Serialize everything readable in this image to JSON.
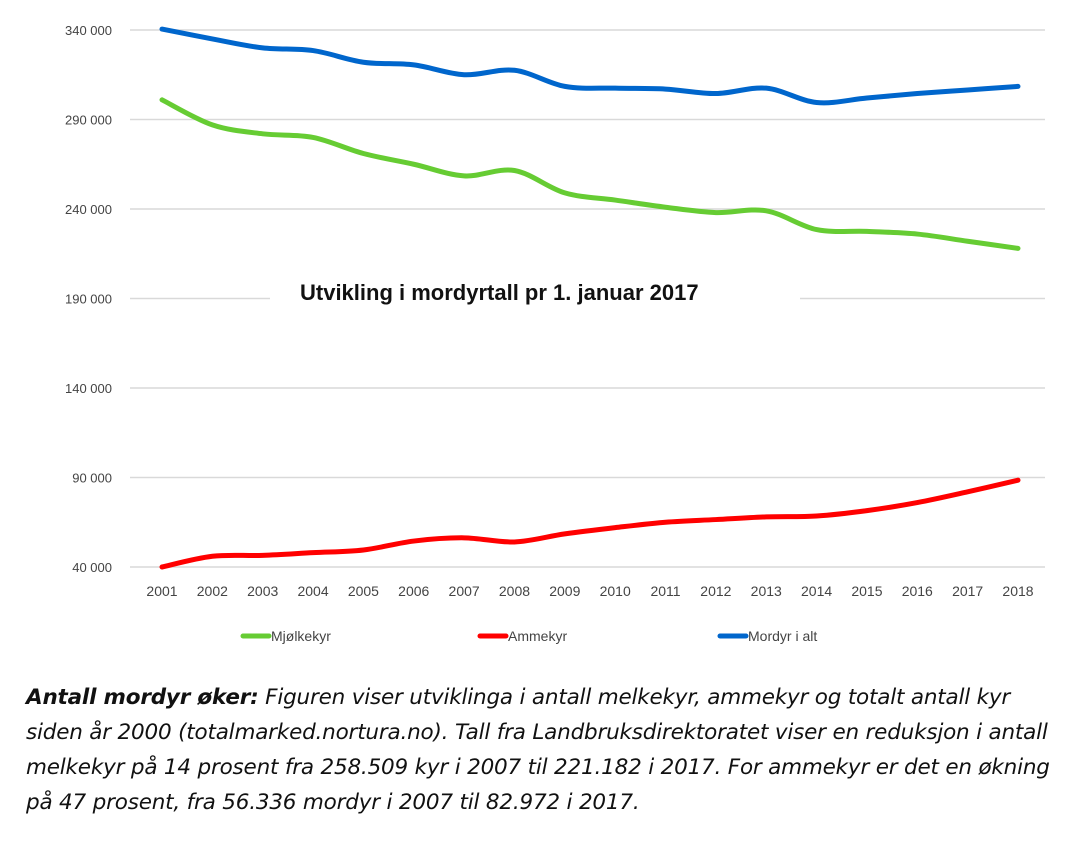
{
  "chart_data": {
    "type": "line",
    "title": "Utvikling i mordyrtall pr 1. januar 2017",
    "xlabel": "",
    "ylabel": "",
    "x": [
      2001,
      2002,
      2003,
      2004,
      2005,
      2006,
      2007,
      2008,
      2009,
      2010,
      2011,
      2012,
      2013,
      2014,
      2015,
      2016,
      2017,
      2018
    ],
    "ylim": [
      40000,
      340000
    ],
    "yticks": [
      40000,
      90000,
      140000,
      190000,
      240000,
      290000,
      340000
    ],
    "ytick_labels": [
      "40 000",
      "90 000",
      "140 000",
      "190 000",
      "240 000",
      "290 000",
      "340 000"
    ],
    "grid": true,
    "legend_position": "bottom",
    "series": [
      {
        "name": "Mjølkekyr",
        "color": "#66cc33",
        "values": [
          301000,
          287000,
          282000,
          280000,
          271000,
          265000,
          258500,
          261500,
          249000,
          245000,
          241000,
          238000,
          239000,
          228500,
          227500,
          226000,
          222000,
          218000
        ]
      },
      {
        "name": "Ammekyr",
        "color": "#ff0000",
        "values": [
          40000,
          46000,
          46500,
          48000,
          49500,
          54500,
          56300,
          54000,
          58500,
          62000,
          65000,
          66500,
          68000,
          68500,
          71500,
          76000,
          82000,
          88500
        ]
      },
      {
        "name": "Mordyr i alt",
        "color": "#0066cc",
        "values": [
          340500,
          335000,
          330000,
          328500,
          322000,
          320500,
          315000,
          317500,
          308500,
          307500,
          307000,
          304500,
          307500,
          299500,
          302000,
          304500,
          306500,
          308500
        ]
      }
    ]
  },
  "caption": {
    "bold": "Antall mordyr øker:",
    "text": " Figuren viser utviklinga i antall melkekyr, ammekyr og totalt antall kyr siden år 2000 (totalmarked.nortura.no). Tall fra Landbruksdirektoratet viser en reduksjon i antall melkekyr på 14 prosent fra 258.509 kyr i 2007 til 221.182 i 2017. For ammekyr er det en økning på 47 prosent, fra 56.336 mordyr i 2007 til 82.972 i 2017."
  }
}
